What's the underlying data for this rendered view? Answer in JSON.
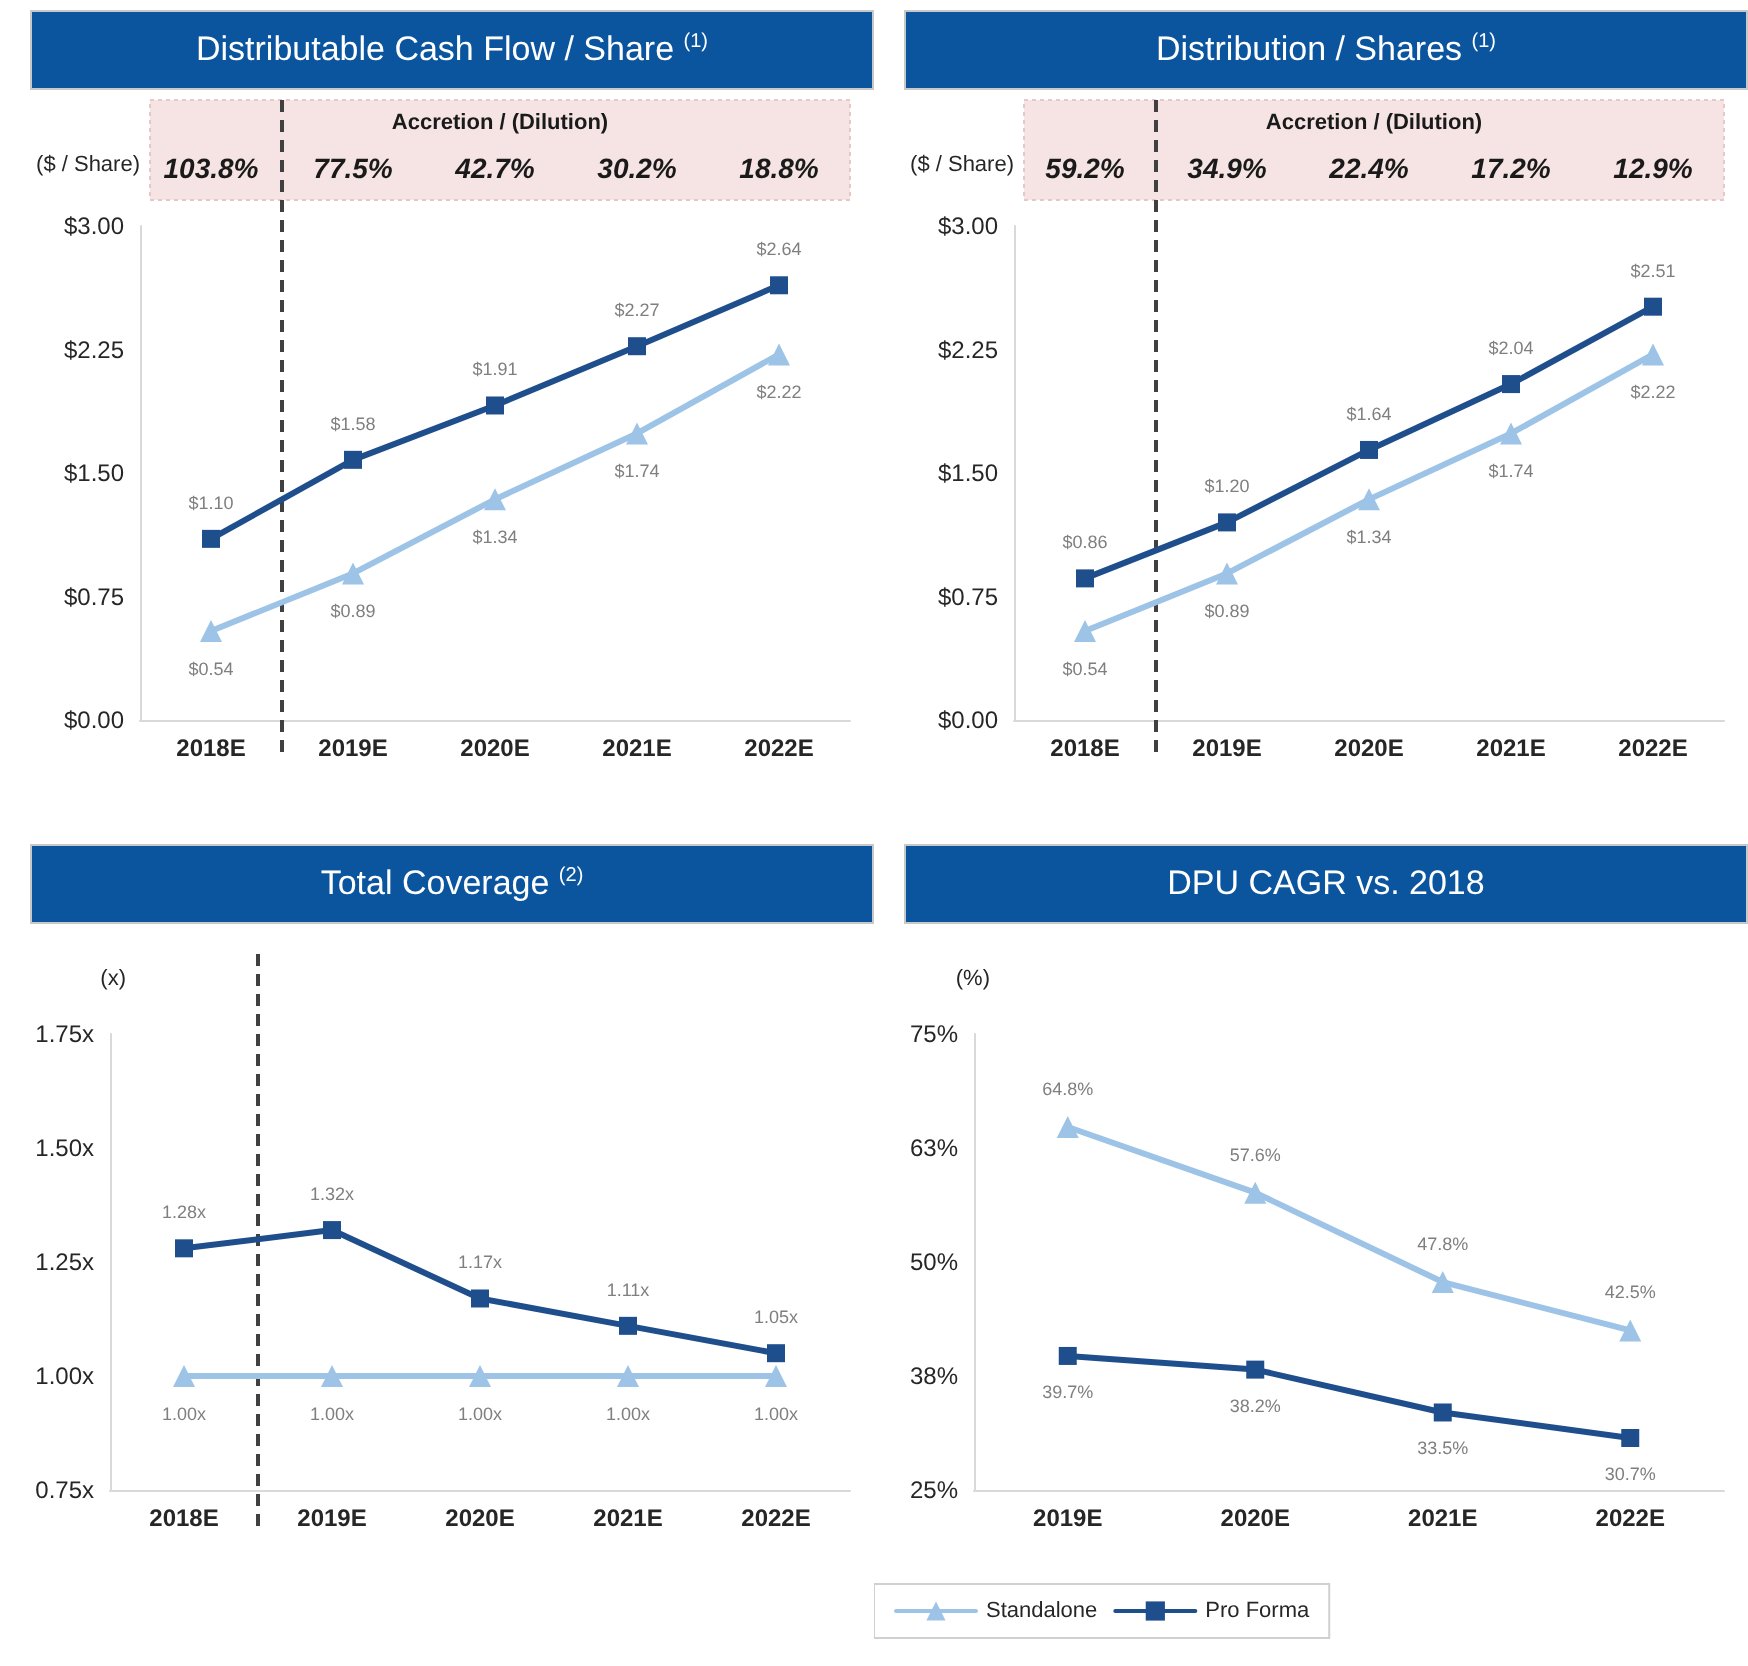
{
  "chart_data": [
    {
      "type": "line",
      "title": "Distributable Cash Flow / Share $^{(1)}$",
      "ylabel": "($ / Share)",
      "categories": [
        "2018E",
        "2019E",
        "2020E",
        "2021E",
        "2022E"
      ],
      "ylim": [
        0,
        3
      ],
      "yticks": [
        {
          "value": 0,
          "label": "$0.00"
        },
        {
          "value": 0.75,
          "label": "$0.75"
        },
        {
          "value": 1.5,
          "label": "$1.50"
        },
        {
          "value": 2.25,
          "label": "$2.25"
        },
        {
          "value": 3,
          "label": "$3.00"
        }
      ],
      "grid": false,
      "line_style": "solid",
      "series": [
        {
          "color": "#9dc3e6",
          "marker": "triangle",
          "values": [
            0.54,
            0.89,
            1.34,
            1.74,
            2.22
          ],
          "value_labels": [
            "$0.54",
            "$0.89",
            "$1.34",
            "$1.74",
            "$2.22"
          ]
        },
        {
          "color": "#1f4e8c",
          "marker": "square",
          "values": [
            1.1,
            1.58,
            1.91,
            2.27,
            2.64
          ],
          "value_labels": [
            "$1.10",
            "$1.58",
            "$1.91",
            "$2.27",
            "$2.64"
          ]
        }
      ],
      "annotations": [
        "Accretion / (Dilution)",
        "103.8%",
        "77.5%",
        "42.7%",
        "30.2%",
        "18.8%"
      ]
    },
    {
      "type": "line",
      "title": "Distribution / Shares $^{(1)}$",
      "ylabel": "($ / Share)",
      "categories": [
        "2018E",
        "2019E",
        "2020E",
        "2021E",
        "2022E"
      ],
      "ylim": [
        0,
        3
      ],
      "yticks": [
        {
          "value": 0,
          "label": "$0.00"
        },
        {
          "value": 0.75,
          "label": "$0.75"
        },
        {
          "value": 1.5,
          "label": "$1.50"
        },
        {
          "value": 2.25,
          "label": "$2.25"
        },
        {
          "value": 3,
          "label": "$3.00"
        }
      ],
      "grid": false,
      "line_style": "solid",
      "series": [
        {
          "color": "#9dc3e6",
          "marker": "triangle",
          "values": [
            0.54,
            0.89,
            1.34,
            1.74,
            2.22
          ],
          "value_labels": [
            "$0.54",
            "$0.89",
            "$1.34",
            "$1.74",
            "$2.22"
          ]
        },
        {
          "color": "#1f4e8c",
          "marker": "square",
          "values": [
            0.86,
            1.2,
            1.64,
            2.04,
            2.51
          ],
          "value_labels": [
            "$0.86",
            "$1.20",
            "$1.64",
            "$2.04",
            "$2.51"
          ]
        }
      ],
      "annotations": [
        "Accretion / (Dilution)",
        "59.2%",
        "34.9%",
        "22.4%",
        "17.2%",
        "12.9%"
      ]
    },
    {
      "type": "line",
      "title": "Total Coverage $^{(2)}$",
      "ylabel": "(x)",
      "categories": [
        "2018E",
        "2019E",
        "2020E",
        "2021E",
        "2022E"
      ],
      "ylim": [
        0.75,
        1.75
      ],
      "yticks": [
        {
          "value": 0.75,
          "label": "0.75x"
        },
        {
          "value": 1,
          "label": "1.00x"
        },
        {
          "value": 1.25,
          "label": "1.25x"
        },
        {
          "value": 1.5,
          "label": "1.50x"
        },
        {
          "value": 1.75,
          "label": "1.75x"
        }
      ],
      "grid": false,
      "line_style": "solid",
      "series": [
        {
          "color": "#9dc3e6",
          "marker": "triangle",
          "values": [
            1.0,
            1.0,
            1.0,
            1.0,
            1.0
          ],
          "value_labels": [
            "1.00x",
            "1.00x",
            "1.00x",
            "1.00x",
            "1.00x"
          ]
        },
        {
          "color": "#1f4e8c",
          "marker": "square",
          "values": [
            1.28,
            1.32,
            1.17,
            1.11,
            1.05
          ],
          "value_labels": [
            "1.28x",
            "1.32x",
            "1.17x",
            "1.11x",
            "1.05x"
          ]
        }
      ]
    },
    {
      "type": "line",
      "title": "DPU CAGR vs. 2018",
      "ylabel": "(%)",
      "categories": [
        "2019E",
        "2020E",
        "2021E",
        "2022E"
      ],
      "ylim": [
        25,
        75
      ],
      "yticks": [
        {
          "value": 25,
          "label": "25%"
        },
        {
          "value": 37.5,
          "label": "38%"
        },
        {
          "value": 50,
          "label": "50%"
        },
        {
          "value": 62.5,
          "label": "63%"
        },
        {
          "value": 75,
          "label": "75%"
        }
      ],
      "grid": false,
      "line_style": "solid",
      "legend": "bottom",
      "series": [
        {
          "name": "Standalone",
          "color": "#9dc3e6",
          "marker": "triangle",
          "values": [
            64.8,
            57.6,
            47.8,
            42.5
          ],
          "value_labels": [
            "64.8%",
            "57.6%",
            "47.8%",
            "42.5%"
          ]
        },
        {
          "name": "Pro Forma",
          "color": "#1f4e8c",
          "marker": "square",
          "values": [
            39.7,
            38.2,
            33.5,
            30.7
          ],
          "value_labels": [
            "39.7%",
            "38.2%",
            "33.5%",
            "30.7%"
          ]
        }
      ]
    }
  ]
}
